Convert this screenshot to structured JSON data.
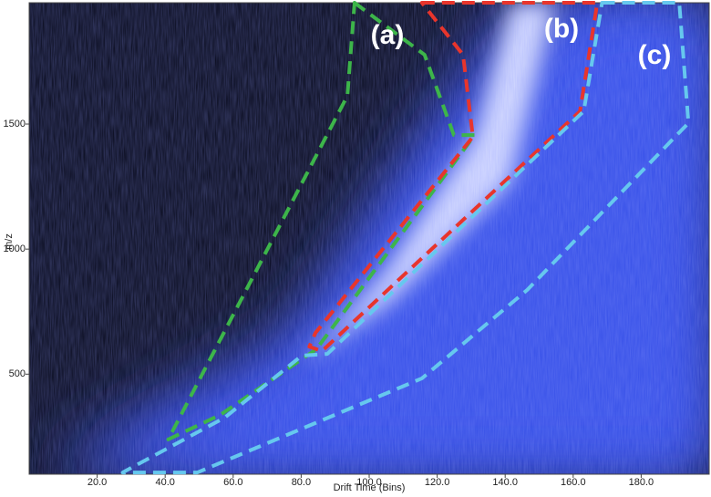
{
  "chart_data": {
    "type": "heatmap",
    "xlabel": "Drift Time (Bins)",
    "ylabel": "m/z",
    "xlim": [
      0,
      200
    ],
    "ylim": [
      100,
      1985
    ],
    "xticks": [
      {
        "value": 20,
        "label": "20.0"
      },
      {
        "value": 40,
        "label": "40.0"
      },
      {
        "value": 60,
        "label": "60.0"
      },
      {
        "value": 80,
        "label": "80.0"
      },
      {
        "value": 100,
        "label": "100.0"
      },
      {
        "value": 120,
        "label": "120.0"
      },
      {
        "value": 140,
        "label": "140.0"
      },
      {
        "value": 160,
        "label": "160.0"
      },
      {
        "value": 180,
        "label": "180.0"
      }
    ],
    "yticks": [
      500,
      1000,
      1500
    ],
    "series": [
      {
        "name": "(a)",
        "color": "#3db54a",
        "x": [
          95.7,
          116.3,
          124.9,
          131.0,
          84.5,
          56.2,
          40.9,
          93.6
        ],
        "y": [
          1985,
          1777,
          1456,
          1456,
          600,
          337,
          239,
          1613
        ]
      },
      {
        "name": "(b)",
        "color": "#e8352c",
        "x": [
          115.5,
          167.1,
          162.0,
          86.1,
          82.4,
          84.2,
          130.5,
          127.6
        ],
        "y": [
          1985,
          1985,
          1551,
          592,
          610,
          665,
          1449,
          1777
        ]
      },
      {
        "name": "(c)",
        "color": "#66c8ee",
        "x": [
          168.5,
          191.2,
          193.9,
          146.5,
          115.5,
          49.5,
          27.5,
          57.5,
          80.2,
          87.7,
          163.1
        ],
        "y": [
          1985,
          1985,
          1504,
          837,
          483,
          107,
          107,
          326,
          574,
          581,
          1551
        ]
      }
    ]
  }
}
